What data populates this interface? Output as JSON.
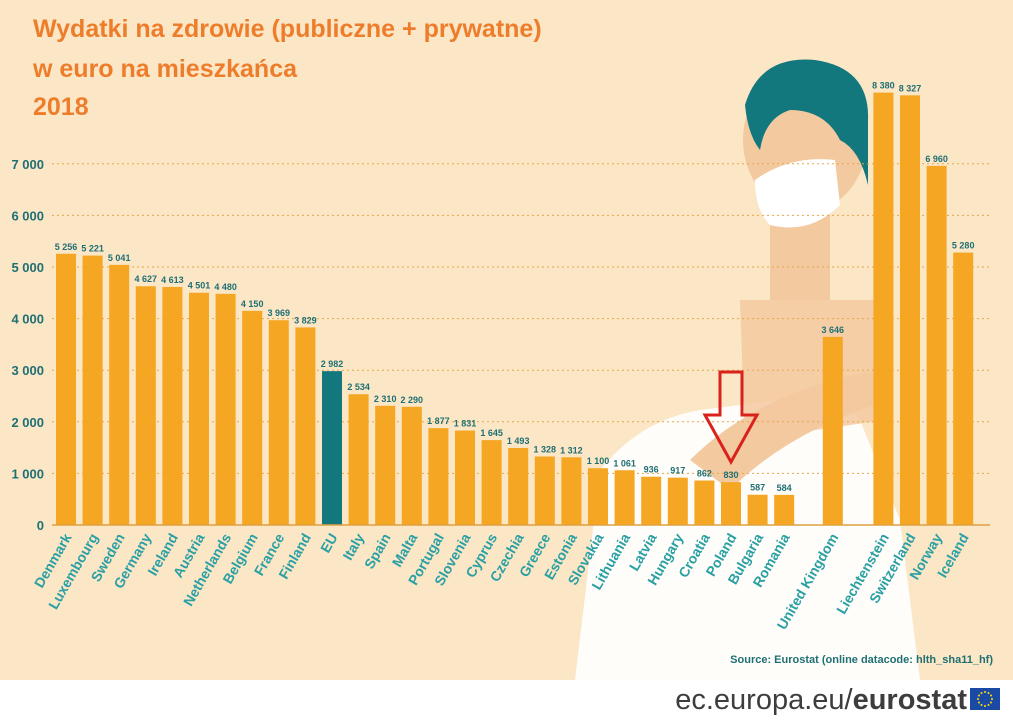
{
  "title": {
    "line1": "Wydatki na zdrowie (publiczne + prywatne)",
    "line2": "w euro na mieszkańca",
    "line3": "2018"
  },
  "chart_data": {
    "type": "bar",
    "title": "Wydatki na zdrowie (publiczne + prywatne) w euro na mieszkańca 2018",
    "xlabel": "",
    "ylabel": "",
    "ylim": [
      0,
      7500
    ],
    "yticks": [
      0,
      1000,
      2000,
      3000,
      4000,
      5000,
      6000,
      7000
    ],
    "ytick_labels": [
      "0",
      "1 000",
      "2 000",
      "3 000",
      "4 000",
      "5 000",
      "6 000",
      "7 000"
    ],
    "grid": true,
    "categories": [
      "Denmark",
      "Luxembourg",
      "Sweden",
      "Germany",
      "Ireland",
      "Austria",
      "Netherlands",
      "Belgium",
      "France",
      "Finland",
      "EU",
      "Italy",
      "Spain",
      "Malta",
      "Portugal",
      "Slovenia",
      "Cyprus",
      "Czechia",
      "Greece",
      "Estonia",
      "Slovakia",
      "Lithuania",
      "Latvia",
      "Hungary",
      "Croatia",
      "Poland",
      "Bulgaria",
      "Romania",
      "United Kingdom",
      "Liechtenstein",
      "Switzerland",
      "Norway",
      "Iceland"
    ],
    "values": [
      5256,
      5221,
      5041,
      4627,
      4613,
      4501,
      4480,
      4150,
      3969,
      3829,
      2982,
      2534,
      2310,
      2290,
      1877,
      1831,
      1645,
      1493,
      1328,
      1312,
      1100,
      1061,
      936,
      917,
      862,
      830,
      587,
      584,
      3646,
      8380,
      8327,
      6960,
      5280
    ],
    "value_labels": [
      "5 256",
      "5 221",
      "5 041",
      "4 627",
      "4 613",
      "4 501",
      "4 480",
      "4 150",
      "3 969",
      "3 829",
      "2 982",
      "2 534",
      "2 310",
      "2 290",
      "1 877",
      "1 831",
      "1 645",
      "1 493",
      "1 328",
      "1 312",
      "1 100",
      "1 061",
      "936",
      "917",
      "862",
      "830",
      "587",
      "584",
      "3 646",
      "8 380",
      "8 327",
      "6 960",
      "5 280"
    ],
    "highlight": "EU",
    "highlight_color": "#13777e",
    "bar_color": "#f5a623",
    "annotation": {
      "type": "arrow",
      "target": "Poland",
      "color": "#d9221c"
    }
  },
  "source": "Source:  Eurostat (online datacode: hlth_sha11_hf)",
  "footer": {
    "domain": "ec.europa.eu/",
    "brand": "eurostat"
  },
  "colors": {
    "background": "#fbe6c6",
    "title": "#ee7d2b",
    "axis_text": "#1f6f73",
    "category_text": "#2aa0a4",
    "grid": "#e3a94a"
  },
  "icons": [
    "person-with-face-mask-illustration",
    "eu-flag-icon"
  ]
}
